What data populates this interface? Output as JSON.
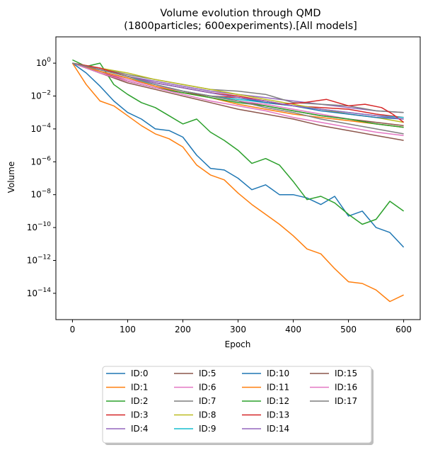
{
  "chart_data": {
    "type": "line",
    "title_lines": [
      "Volume evolution through QMD",
      "(1800particles; 600experiments).[All models]"
    ],
    "xlabel": "Epoch",
    "ylabel": "Volume",
    "xlim": [
      -30,
      630
    ],
    "ylim_log10": [
      -15.6,
      1.6
    ],
    "yscale": "log",
    "xticks": [
      0,
      100,
      200,
      300,
      400,
      500,
      600
    ],
    "xtick_labels": [
      "0",
      "100",
      "200",
      "300",
      "400",
      "500",
      "600"
    ],
    "yticks_exp": [
      0,
      -2,
      -4,
      -6,
      -8,
      -10,
      -12,
      -14
    ],
    "ytick_labels": [
      {
        "base": "10",
        "exp": "0"
      },
      {
        "base": "10",
        "exp": "−2"
      },
      {
        "base": "10",
        "exp": "−4"
      },
      {
        "base": "10",
        "exp": "−6"
      },
      {
        "base": "10",
        "exp": "−8"
      },
      {
        "base": "10",
        "exp": "−10"
      },
      {
        "base": "10",
        "exp": "−12"
      },
      {
        "base": "10",
        "exp": "−14"
      }
    ],
    "legend_placement": "below-center",
    "legend_columns": 4,
    "series": [
      {
        "name": "ID:0",
        "color": "#1f77b4",
        "x": [
          0,
          25,
          50,
          75,
          100,
          125,
          150,
          175,
          200,
          225,
          250,
          275,
          300,
          325,
          350,
          375,
          400,
          425,
          450,
          475,
          500,
          525,
          550,
          575,
          600
        ],
        "log10_y": [
          0,
          -0.6,
          -1.4,
          -2.3,
          -3,
          -3.4,
          -4,
          -4.1,
          -4.5,
          -5.6,
          -6.4,
          -6.5,
          -7,
          -7.7,
          -7.4,
          -8,
          -8,
          -8.2,
          -8.6,
          -8.1,
          -9.3,
          -9,
          -10,
          -10.3,
          -11.2
        ]
      },
      {
        "name": "ID:1",
        "color": "#ff7f0e",
        "x": [
          0,
          25,
          50,
          75,
          100,
          125,
          150,
          175,
          200,
          225,
          250,
          275,
          300,
          325,
          350,
          375,
          400,
          425,
          450,
          475,
          500,
          525,
          550,
          575,
          600
        ],
        "log10_y": [
          0,
          -1.3,
          -2.3,
          -2.6,
          -3.2,
          -3.8,
          -4.3,
          -4.6,
          -5.1,
          -6.2,
          -6.8,
          -7.1,
          -7.9,
          -8.6,
          -9.2,
          -9.8,
          -10.5,
          -11.3,
          -11.6,
          -12.5,
          -13.3,
          -13.4,
          -13.8,
          -14.5,
          -14.1
        ]
      },
      {
        "name": "ID:2",
        "color": "#2ca02c",
        "x": [
          0,
          25,
          50,
          75,
          100,
          125,
          150,
          175,
          200,
          225,
          250,
          275,
          300,
          325,
          350,
          375,
          400,
          425,
          450,
          475,
          500,
          525,
          550,
          575,
          600
        ],
        "log10_y": [
          0.2,
          -0.2,
          0,
          -1.3,
          -1.9,
          -2.4,
          -2.7,
          -3.2,
          -3.7,
          -3.4,
          -4.2,
          -4.7,
          -5.3,
          -6.1,
          -5.8,
          -6.2,
          -7.2,
          -8.3,
          -8.1,
          -8.5,
          -9.2,
          -9.8,
          -9.5,
          -8.4,
          -9
        ]
      },
      {
        "name": "ID:3",
        "color": "#d62728",
        "x": [
          0,
          50,
          100,
          150,
          200,
          250,
          300,
          350,
          400,
          450,
          500,
          550,
          600
        ],
        "log10_y": [
          0,
          -0.5,
          -1.1,
          -1.5,
          -1.8,
          -2,
          -2.1,
          -2.3,
          -2.6,
          -2.7,
          -2.8,
          -3.1,
          -3.3
        ]
      },
      {
        "name": "ID:4",
        "color": "#9467bd",
        "x": [
          0,
          50,
          100,
          150,
          200,
          250,
          300,
          350,
          400,
          450,
          500,
          550,
          600
        ],
        "log10_y": [
          0,
          -0.4,
          -0.8,
          -1.1,
          -1.4,
          -1.7,
          -1.9,
          -2.1,
          -2.3,
          -2.5,
          -2.7,
          -2.9,
          -3
        ]
      },
      {
        "name": "ID:5",
        "color": "#8c564b",
        "x": [
          0,
          50,
          100,
          150,
          200,
          250,
          300,
          350,
          400,
          450,
          500,
          550,
          600
        ],
        "log10_y": [
          0,
          -0.5,
          -0.9,
          -1.3,
          -1.7,
          -2,
          -2.3,
          -2.6,
          -2.9,
          -3.2,
          -3.4,
          -3.6,
          -3.8
        ]
      },
      {
        "name": "ID:6",
        "color": "#e377c2",
        "x": [
          0,
          50,
          100,
          150,
          200,
          250,
          300,
          350,
          400,
          450,
          500,
          550,
          600
        ],
        "log10_y": [
          0,
          -0.5,
          -1,
          -1.4,
          -1.7,
          -2,
          -2.3,
          -2.5,
          -2.8,
          -3.1,
          -3.4,
          -3.7,
          -3.9
        ]
      },
      {
        "name": "ID:7",
        "color": "#7f7f7f",
        "x": [
          0,
          50,
          100,
          150,
          200,
          250,
          300,
          350,
          400,
          450,
          500,
          550,
          600
        ],
        "log10_y": [
          0,
          -0.3,
          -0.7,
          -1,
          -1.3,
          -1.6,
          -1.7,
          -1.9,
          -2.4,
          -2.5,
          -2.6,
          -2.9,
          -3
        ]
      },
      {
        "name": "ID:8",
        "color": "#bcbd22",
        "x": [
          0,
          50,
          100,
          150,
          200,
          250,
          300,
          350,
          400,
          450,
          500,
          550,
          600
        ],
        "log10_y": [
          0,
          -0.3,
          -0.6,
          -1,
          -1.3,
          -1.6,
          -1.9,
          -2.2,
          -2.5,
          -2.8,
          -3.1,
          -3.3,
          -3.6
        ]
      },
      {
        "name": "ID:9",
        "color": "#17becf",
        "x": [
          0,
          50,
          100,
          150,
          200,
          250,
          300,
          350,
          400,
          450,
          500,
          550,
          600
        ],
        "log10_y": [
          0,
          -0.5,
          -0.9,
          -1.3,
          -1.7,
          -2,
          -2.2,
          -2.4,
          -2.6,
          -2.8,
          -3,
          -3.2,
          -3.3
        ]
      },
      {
        "name": "ID:10",
        "color": "#1f77b4",
        "x": [
          0,
          50,
          100,
          150,
          200,
          250,
          300,
          350,
          400,
          450,
          500,
          550,
          600
        ],
        "log10_y": [
          0,
          -0.4,
          -0.8,
          -1.2,
          -1.5,
          -1.8,
          -2.1,
          -2.4,
          -2.6,
          -2.9,
          -3.1,
          -3.3,
          -3.4
        ]
      },
      {
        "name": "ID:11",
        "color": "#ff7f0e",
        "x": [
          0,
          50,
          100,
          150,
          200,
          250,
          300,
          350,
          400,
          450,
          500,
          550,
          600
        ],
        "log10_y": [
          0,
          -0.5,
          -0.9,
          -1.4,
          -1.8,
          -2.1,
          -2.5,
          -2.8,
          -3.1,
          -3.3,
          -3.5,
          -3.7,
          -3.9
        ]
      },
      {
        "name": "ID:12",
        "color": "#2ca02c",
        "x": [
          0,
          50,
          100,
          150,
          200,
          250,
          300,
          350,
          400,
          450,
          500,
          550,
          600
        ],
        "log10_y": [
          0,
          -0.6,
          -1.1,
          -1.5,
          -1.8,
          -2.1,
          -2.4,
          -2.6,
          -2.9,
          -3.2,
          -3.4,
          -3.7,
          -3.9
        ]
      },
      {
        "name": "ID:13",
        "color": "#d62728",
        "x": [
          0,
          50,
          100,
          150,
          200,
          250,
          300,
          350,
          380,
          420,
          460,
          500,
          530,
          560,
          580,
          600
        ],
        "log10_y": [
          0,
          -0.3,
          -0.8,
          -1.2,
          -1.5,
          -1.8,
          -2,
          -2.3,
          -2.5,
          -2.4,
          -2.2,
          -2.6,
          -2.5,
          -2.7,
          -3.1,
          -3.6
        ]
      },
      {
        "name": "ID:14",
        "color": "#9467bd",
        "x": [
          0,
          50,
          100,
          150,
          200,
          250,
          300,
          350,
          400,
          450,
          500,
          550,
          600
        ],
        "log10_y": [
          0,
          -0.4,
          -0.8,
          -1.2,
          -1.5,
          -1.8,
          -2.1,
          -2.3,
          -2.6,
          -2.8,
          -3,
          -3.2,
          -3.4
        ]
      },
      {
        "name": "ID:15",
        "color": "#8c564b",
        "x": [
          0,
          50,
          100,
          150,
          200,
          250,
          300,
          350,
          400,
          450,
          500,
          550,
          600
        ],
        "log10_y": [
          0,
          -0.6,
          -1.2,
          -1.6,
          -2,
          -2.4,
          -2.8,
          -3.1,
          -3.4,
          -3.8,
          -4.1,
          -4.4,
          -4.7
        ]
      },
      {
        "name": "ID:16",
        "color": "#e377c2",
        "x": [
          0,
          50,
          100,
          150,
          200,
          250,
          300,
          350,
          400,
          450,
          500,
          550,
          600
        ],
        "log10_y": [
          0,
          -0.6,
          -1.1,
          -1.5,
          -1.9,
          -2.3,
          -2.6,
          -2.9,
          -3.3,
          -3.6,
          -3.9,
          -4.2,
          -4.4
        ]
      },
      {
        "name": "ID:17",
        "color": "#7f7f7f",
        "x": [
          0,
          50,
          100,
          150,
          200,
          250,
          300,
          350,
          400,
          450,
          500,
          550,
          600
        ],
        "log10_y": [
          0,
          -0.4,
          -0.8,
          -1.3,
          -1.7,
          -2,
          -2.3,
          -2.7,
          -3,
          -3.4,
          -3.7,
          -4,
          -4.3
        ]
      }
    ]
  }
}
